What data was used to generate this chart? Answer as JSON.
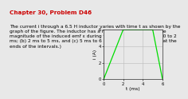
{
  "title_line1": "Chapter 30, Problem D46",
  "description": "The current i through a 6.5 H inductor varies with time t as shown by the\ngraph of the figure. The inductor has a resistance of 12 Ω. Find the\nmagnitude of the induced emf ε during the time intervals (a) t = 0 to 2\nms; (b) 2 ms to 5 ms, and (c) 5 ms to 6 ms. (Ignore the behavior at the\nends of the intervals.)",
  "t_points": [
    0,
    2,
    5,
    6
  ],
  "i_points": [
    0,
    6,
    6,
    0
  ],
  "xlabel": "t (ms)",
  "ylabel": "i (A)",
  "xlim": [
    0,
    6
  ],
  "ylim": [
    0,
    6
  ],
  "xticks": [
    0,
    2,
    4,
    6
  ],
  "yticks": [
    0,
    2,
    4,
    6
  ],
  "line_color": "#00dd00",
  "grid_color": "#bbbbbb",
  "title_color": "#cc0000",
  "text_color": "#000000",
  "bg_color": "#e8e8e8",
  "title_fontsize": 5.2,
  "desc_fontsize": 4.2,
  "axis_label_fontsize": 4.2,
  "tick_fontsize": 3.8,
  "line_width": 0.9
}
